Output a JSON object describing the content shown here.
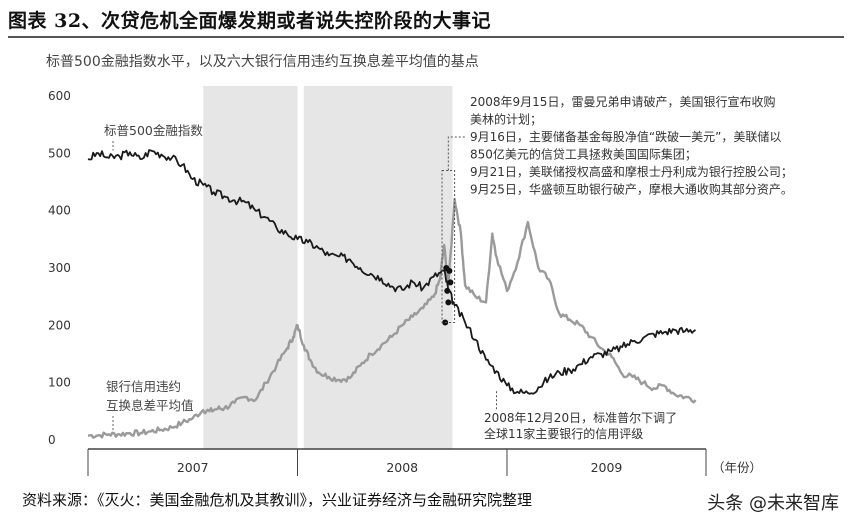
{
  "figure": {
    "title": "图表 32、次贷危机全面爆发期或者说失控阶段的大事记",
    "subtitle": "标普500金融指数水平，以及六大银行信用违约互换息差平均值的基点",
    "source": "资料来源：《灭火：美国金融危机及其教训》，兴业证券经济与金融研究院整理",
    "watermark": "头条 @未来智库"
  },
  "chart_data": {
    "type": "line",
    "y_ticks": [
      "600",
      "500",
      "400",
      "300",
      "200",
      "100",
      "0"
    ],
    "ylim": [
      0,
      600
    ],
    "x_tick_labels": [
      "2007",
      "2008",
      "2009"
    ],
    "x_unit": "（年份）",
    "xlim": [
      2007.0,
      2009.95
    ],
    "shaded_periods": [
      [
        2007.55,
        2008.0
      ],
      [
        2008.03,
        2008.74
      ]
    ],
    "colors": {
      "sp500": "#1a1a1a",
      "cds": "#9a9a9a",
      "shade": "#e6e6e6"
    },
    "series": [
      {
        "name": "标普500金融指数",
        "x": [
          2007.0,
          2007.05,
          2007.1,
          2007.15,
          2007.2,
          2007.25,
          2007.3,
          2007.35,
          2007.4,
          2007.45,
          2007.5,
          2007.55,
          2007.6,
          2007.65,
          2007.7,
          2007.75,
          2007.8,
          2007.85,
          2007.9,
          2007.95,
          2008.0,
          2008.05,
          2008.1,
          2008.15,
          2008.2,
          2008.25,
          2008.3,
          2008.35,
          2008.4,
          2008.45,
          2008.5,
          2008.55,
          2008.6,
          2008.65,
          2008.7,
          2008.72,
          2008.75,
          2008.8,
          2008.85,
          2008.9,
          2008.95,
          2009.0,
          2009.05,
          2009.1,
          2009.15,
          2009.2,
          2009.25,
          2009.3,
          2009.35,
          2009.4,
          2009.45,
          2009.5,
          2009.55,
          2009.6,
          2009.65,
          2009.7,
          2009.75,
          2009.8,
          2009.85,
          2009.9
        ],
        "values": [
          490,
          500,
          492,
          495,
          502,
          490,
          505,
          498,
          492,
          480,
          455,
          445,
          432,
          425,
          418,
          415,
          400,
          388,
          370,
          360,
          350,
          345,
          335,
          322,
          320,
          315,
          300,
          290,
          282,
          268,
          262,
          276,
          265,
          285,
          295,
          262,
          235,
          205,
          175,
          140,
          120,
          95,
          84,
          82,
          92,
          108,
          118,
          122,
          132,
          145,
          150,
          155,
          162,
          172,
          178,
          185,
          188,
          192,
          190,
          192
        ]
      },
      {
        "name": "银行信用违约互换息差平均值",
        "x": [
          2007.0,
          2007.05,
          2007.1,
          2007.15,
          2007.2,
          2007.25,
          2007.3,
          2007.35,
          2007.4,
          2007.45,
          2007.5,
          2007.55,
          2007.58,
          2007.62,
          2007.65,
          2007.7,
          2007.75,
          2007.8,
          2007.85,
          2007.9,
          2007.95,
          2007.98,
          2008.0,
          2008.03,
          2008.06,
          2008.1,
          2008.15,
          2008.2,
          2008.25,
          2008.3,
          2008.35,
          2008.4,
          2008.45,
          2008.5,
          2008.55,
          2008.6,
          2008.65,
          2008.68,
          2008.7,
          2008.72,
          2008.75,
          2008.78,
          2008.8,
          2008.85,
          2008.9,
          2008.93,
          2008.95,
          2009.0,
          2009.05,
          2009.1,
          2009.15,
          2009.2,
          2009.25,
          2009.3,
          2009.35,
          2009.4,
          2009.45,
          2009.5,
          2009.55,
          2009.6,
          2009.65,
          2009.7,
          2009.75,
          2009.8,
          2009.85,
          2009.9
        ],
        "values": [
          8,
          8,
          10,
          10,
          12,
          12,
          15,
          18,
          22,
          30,
          38,
          52,
          50,
          55,
          55,
          65,
          75,
          70,
          100,
          130,
          160,
          180,
          200,
          165,
          140,
          118,
          110,
          105,
          108,
          130,
          150,
          165,
          180,
          200,
          215,
          230,
          250,
          280,
          340,
          270,
          420,
          360,
          270,
          250,
          240,
          360,
          320,
          260,
          310,
          380,
          300,
          280,
          220,
          210,
          200,
          180,
          160,
          145,
          115,
          110,
          100,
          90,
          95,
          80,
          75,
          70
        ]
      }
    ],
    "labels": {
      "sp500": "标普500金融指数",
      "cds_line1": "银行信用违约",
      "cds_line2": "互换息差平均值"
    },
    "annotations": {
      "events_top": [
        "2008年9月15日，雷曼兄弟申请破产，美国银行宣布收购",
        "美林的计划；",
        "9月16日，主要储备基金每股净值“跌破一美元”，美联储以",
        "850亿美元的信贷工具拯救美国国际集团；",
        "9月21日，美联储授权高盛和摩根士丹利成为银行控股公司；",
        "9月25日，华盛顿互助银行破产，摩根大通收购其部分资产。"
      ],
      "event_bottom": [
        "2008年12月20日，标准普尔下调了",
        "全球11家主要银行的信用评级"
      ]
    }
  }
}
